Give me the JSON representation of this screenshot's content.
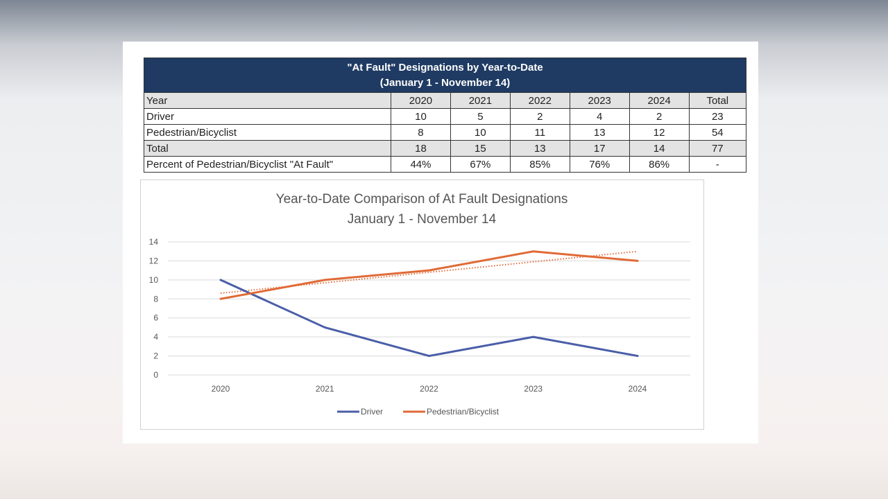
{
  "table": {
    "title_line1": "\"At Fault\" Designations by Year-to-Date",
    "title_line2": "(January 1 - November 14)",
    "header": [
      "Year",
      "2020",
      "2021",
      "2022",
      "2023",
      "2024",
      "Total"
    ],
    "rows": [
      [
        "Driver",
        "10",
        "5",
        "2",
        "4",
        "2",
        "23"
      ],
      [
        "Pedestrian/Bicyclist",
        "8",
        "10",
        "11",
        "13",
        "12",
        "54"
      ],
      [
        "Total",
        "18",
        "15",
        "13",
        "17",
        "14",
        "77"
      ],
      [
        "Percent of Pedestrian/Bicyclist \"At Fault\"",
        "44%",
        "67%",
        "85%",
        "76%",
        "86%",
        "-"
      ]
    ]
  },
  "chart_data": {
    "type": "line",
    "title": "Year-to-Date Comparison of At Fault Designations",
    "subtitle": "January 1 - November 14",
    "x": [
      "2020",
      "2021",
      "2022",
      "2023",
      "2024"
    ],
    "ylim": [
      0,
      14
    ],
    "yticks": [
      "0",
      "2",
      "4",
      "6",
      "8",
      "10",
      "12",
      "14"
    ],
    "grid": true,
    "legend_position": "bottom",
    "series": [
      {
        "name": "Driver",
        "values": [
          10,
          5,
          2,
          4,
          2
        ],
        "color": "#4a5ea8"
      },
      {
        "name": "Pedestrian/Bicyclist",
        "values": [
          8,
          10,
          11,
          13,
          12
        ],
        "color": "#e06a36"
      }
    ],
    "trendline": {
      "series": "Pedestrian/Bicyclist",
      "type": "linear",
      "values": [
        8.6,
        9.7,
        10.8,
        11.9,
        13.0
      ],
      "color": "#e06a36"
    }
  }
}
